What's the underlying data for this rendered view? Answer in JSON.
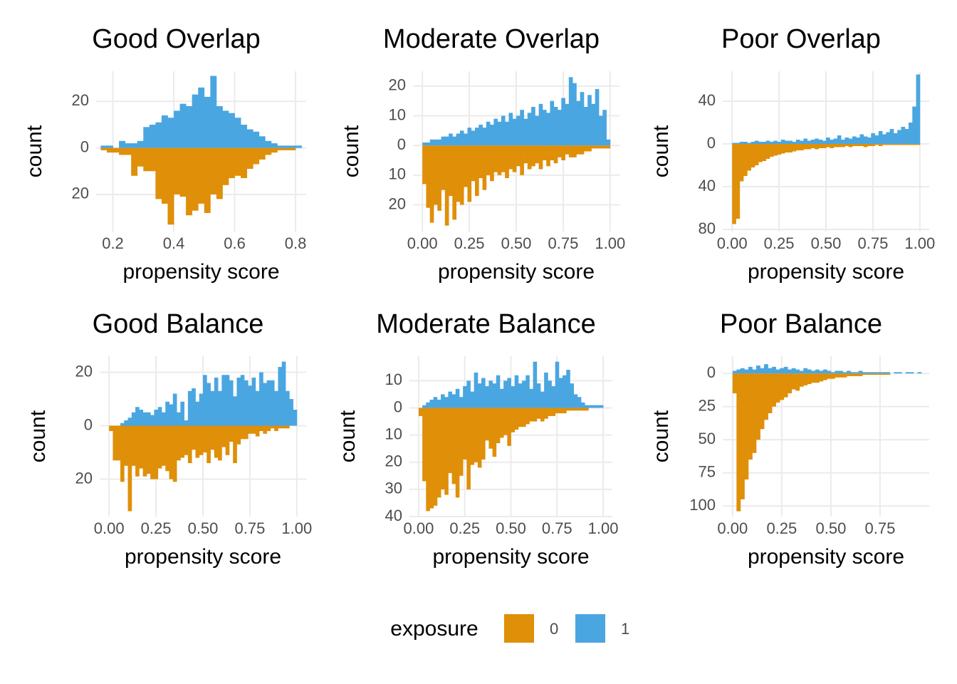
{
  "chart_data": [
    {
      "type": "histogram",
      "title": "Good Overlap",
      "xlabel": "propensity score",
      "ylabel": "count",
      "bins": [
        0.16,
        0.18,
        0.2,
        0.22,
        0.24,
        0.26,
        0.28,
        0.3,
        0.32,
        0.34,
        0.36,
        0.38,
        0.4,
        0.42,
        0.44,
        0.46,
        0.48,
        0.5,
        0.52,
        0.54,
        0.56,
        0.58,
        0.6,
        0.62,
        0.64,
        0.66,
        0.68,
        0.7,
        0.72,
        0.74,
        0.76,
        0.78,
        0.8,
        0.82
      ],
      "series": [
        {
          "name": "0",
          "color": "#df8f08",
          "values": [
            -1,
            -2,
            -2,
            -3,
            -3,
            -12,
            -8,
            -10,
            -10,
            -22,
            -24,
            -33,
            -20,
            -21,
            -29,
            -27,
            -24,
            -28,
            -20,
            -22,
            -16,
            -13,
            -12,
            -13,
            -9,
            -7,
            -5,
            -3,
            -2,
            -1,
            -1,
            -1,
            0
          ]
        },
        {
          "name": "1",
          "color": "#4aa6e1",
          "values": [
            1,
            1,
            0,
            3,
            2,
            2,
            3,
            9,
            10,
            11,
            14,
            13,
            16,
            19,
            18,
            23,
            26,
            22,
            31,
            18,
            16,
            15,
            13,
            10,
            8,
            7,
            5,
            3,
            2,
            1,
            1,
            1,
            1
          ]
        }
      ],
      "xlim": [
        0.145,
        0.835
      ],
      "xticks": [
        0.2,
        0.4,
        0.6,
        0.8
      ],
      "ylim": [
        -36,
        33
      ],
      "yticks": [
        {
          "value": -20,
          "label": "20"
        },
        0,
        20
      ],
      "grid": true
    },
    {
      "type": "histogram",
      "title": "Moderate Overlap",
      "xlabel": "propensity score",
      "ylabel": "count",
      "bins": [
        0,
        0.02,
        0.04,
        0.06,
        0.08,
        0.1,
        0.12,
        0.14,
        0.16,
        0.18,
        0.2,
        0.22,
        0.24,
        0.26,
        0.28,
        0.3,
        0.32,
        0.34,
        0.36,
        0.38,
        0.4,
        0.42,
        0.44,
        0.46,
        0.48,
        0.5,
        0.52,
        0.54,
        0.56,
        0.58,
        0.6,
        0.62,
        0.64,
        0.66,
        0.68,
        0.7,
        0.72,
        0.74,
        0.76,
        0.78,
        0.8,
        0.82,
        0.84,
        0.86,
        0.88,
        0.9,
        0.92,
        0.94,
        0.96,
        0.98,
        1
      ],
      "series": [
        {
          "name": "0",
          "color": "#df8f08",
          "values": [
            -13,
            -21,
            -26,
            -20,
            -22,
            -15,
            -27,
            -17,
            -25,
            -19,
            -20,
            -14,
            -19,
            -12,
            -17,
            -11,
            -15,
            -10,
            -12,
            -9,
            -10,
            -9,
            -11,
            -8,
            -9,
            -7,
            -10,
            -6,
            -8,
            -7,
            -6,
            -8,
            -5,
            -7,
            -5,
            -6,
            -4,
            -5,
            -3,
            -4,
            -4,
            -3,
            -3,
            -2,
            -2,
            -1,
            -1,
            -1,
            -1,
            -1
          ]
        },
        {
          "name": "1",
          "color": "#4aa6e1",
          "values": [
            1,
            1,
            2,
            2,
            2,
            3,
            3,
            4,
            3,
            4,
            5,
            4,
            6,
            5,
            6,
            7,
            6,
            8,
            7,
            9,
            8,
            10,
            8,
            11,
            9,
            10,
            12,
            9,
            11,
            13,
            10,
            14,
            12,
            11,
            15,
            13,
            12,
            16,
            14,
            23,
            21,
            15,
            18,
            13,
            17,
            14,
            19,
            10,
            12,
            2
          ]
        }
      ],
      "xlim": [
        -0.05,
        1.05
      ],
      "xticks": [
        {
          "value": 0,
          "label": "0.00"
        },
        0.25,
        {
          "value": 0.5,
          "label": "0.50"
        },
        0.75,
        {
          "value": 1,
          "label": "1.00"
        }
      ],
      "ylim": [
        -29,
        25
      ],
      "yticks": [
        {
          "value": -20,
          "label": "20"
        },
        {
          "value": -10,
          "label": "10"
        },
        0,
        10,
        20
      ],
      "grid": true
    },
    {
      "type": "histogram",
      "title": "Poor Overlap",
      "xlabel": "propensity score",
      "ylabel": "count",
      "bins": [
        0,
        0.02,
        0.04,
        0.06,
        0.08,
        0.1,
        0.12,
        0.14,
        0.16,
        0.18,
        0.2,
        0.22,
        0.24,
        0.26,
        0.28,
        0.3,
        0.32,
        0.34,
        0.36,
        0.38,
        0.4,
        0.42,
        0.44,
        0.46,
        0.48,
        0.5,
        0.52,
        0.54,
        0.56,
        0.58,
        0.6,
        0.62,
        0.64,
        0.66,
        0.68,
        0.7,
        0.72,
        0.74,
        0.76,
        0.78,
        0.8,
        0.82,
        0.84,
        0.86,
        0.88,
        0.9,
        0.92,
        0.94,
        0.96,
        0.98,
        1
      ],
      "series": [
        {
          "name": "0",
          "color": "#df8f08",
          "values": [
            -75,
            -70,
            -35,
            -30,
            -25,
            -22,
            -20,
            -17,
            -16,
            -14,
            -12,
            -11,
            -10,
            -9,
            -8,
            -8,
            -7,
            -6,
            -6,
            -5,
            -5,
            -4,
            -5,
            -4,
            -4,
            -3,
            -4,
            -3,
            -3,
            -3,
            -2,
            -3,
            -2,
            -2,
            -2,
            -3,
            -2,
            -2,
            -1,
            -2,
            -1,
            -1,
            -1,
            -1,
            -1,
            -1,
            -1,
            -1,
            -1,
            -1
          ]
        },
        {
          "name": "1",
          "color": "#4aa6e1",
          "values": [
            1,
            1,
            2,
            2,
            1,
            2,
            3,
            2,
            2,
            3,
            2,
            3,
            2,
            4,
            3,
            3,
            2,
            4,
            3,
            5,
            3,
            4,
            5,
            4,
            3,
            6,
            4,
            5,
            8,
            4,
            6,
            5,
            7,
            6,
            9,
            7,
            6,
            10,
            8,
            12,
            9,
            11,
            14,
            10,
            13,
            16,
            14,
            20,
            35,
            65
          ]
        }
      ],
      "xlim": [
        -0.05,
        1.05
      ],
      "xticks": [
        {
          "value": 0,
          "label": "0.00"
        },
        0.25,
        {
          "value": 0.5,
          "label": "0.50"
        },
        0.75,
        {
          "value": 1,
          "label": "1.00"
        }
      ],
      "ylim": [
        -82,
        68
      ],
      "yticks": [
        {
          "value": -80,
          "label": "80"
        },
        {
          "value": -40,
          "label": "40"
        },
        0,
        40
      ],
      "grid": true
    },
    {
      "type": "histogram",
      "title": "Good Balance",
      "xlabel": "propensity score",
      "ylabel": "count",
      "bins": [
        0,
        0.02,
        0.04,
        0.06,
        0.08,
        0.1,
        0.12,
        0.14,
        0.16,
        0.18,
        0.2,
        0.22,
        0.24,
        0.26,
        0.28,
        0.3,
        0.32,
        0.34,
        0.36,
        0.38,
        0.4,
        0.42,
        0.44,
        0.46,
        0.48,
        0.5,
        0.52,
        0.54,
        0.56,
        0.58,
        0.6,
        0.62,
        0.64,
        0.66,
        0.68,
        0.7,
        0.72,
        0.74,
        0.76,
        0.78,
        0.8,
        0.82,
        0.84,
        0.86,
        0.88,
        0.9,
        0.92,
        0.94,
        0.96,
        0.98,
        1
      ],
      "series": [
        {
          "name": "0",
          "color": "#df8f08",
          "values": [
            -2,
            -13,
            -13,
            -21,
            -15,
            -32,
            -15,
            -19,
            -16,
            -19,
            -18,
            -20,
            -20,
            -16,
            -15,
            -17,
            -20,
            -21,
            -13,
            -12,
            -11,
            -14,
            -9,
            -12,
            -11,
            -10,
            -14,
            -9,
            -12,
            -13,
            -8,
            -11,
            -6,
            -14,
            -7,
            -5,
            -5,
            -3,
            -3,
            -4,
            -2,
            -3,
            -2,
            -1,
            -2,
            -1,
            -1,
            -1,
            0,
            0
          ]
        },
        {
          "name": "1",
          "color": "#4aa6e1",
          "values": [
            0,
            0,
            0,
            1,
            2,
            3,
            5,
            7,
            6,
            5,
            5,
            4,
            6,
            7,
            5,
            9,
            8,
            12,
            5,
            9,
            2,
            13,
            14,
            9,
            12,
            19,
            16,
            13,
            18,
            13,
            19,
            19,
            17,
            11,
            18,
            19,
            17,
            15,
            18,
            13,
            20,
            16,
            17,
            17,
            13,
            22,
            24,
            13,
            10,
            6
          ]
        }
      ],
      "xlim": [
        -0.05,
        1.05
      ],
      "xticks": [
        {
          "value": 0,
          "label": "0.00"
        },
        0.25,
        {
          "value": 0.5,
          "label": "0.50"
        },
        0.75,
        {
          "value": 1,
          "label": "1.00"
        }
      ],
      "ylim": [
        -34,
        26
      ],
      "yticks": [
        {
          "value": -20,
          "label": "20"
        },
        0,
        20
      ],
      "grid": true
    },
    {
      "type": "histogram",
      "title": "Moderate Balance",
      "xlabel": "propensity score",
      "ylabel": "count",
      "bins": [
        0,
        0.02,
        0.04,
        0.06,
        0.08,
        0.1,
        0.12,
        0.14,
        0.16,
        0.18,
        0.2,
        0.22,
        0.24,
        0.26,
        0.28,
        0.3,
        0.32,
        0.34,
        0.36,
        0.38,
        0.4,
        0.42,
        0.44,
        0.46,
        0.48,
        0.5,
        0.52,
        0.54,
        0.56,
        0.58,
        0.6,
        0.62,
        0.64,
        0.66,
        0.68,
        0.7,
        0.72,
        0.74,
        0.76,
        0.78,
        0.8,
        0.82,
        0.84,
        0.86,
        0.88,
        0.9,
        0.92,
        0.94,
        0.96,
        0.98,
        1
      ],
      "series": [
        {
          "name": "0",
          "color": "#df8f08",
          "values": [
            -3,
            -27,
            -38,
            -37,
            -36,
            -33,
            -30,
            -32,
            -24,
            -28,
            -33,
            -25,
            -19,
            -30,
            -21,
            -20,
            -22,
            -19,
            -12,
            -15,
            -18,
            -13,
            -11,
            -10,
            -14,
            -9,
            -8,
            -7,
            -7,
            -6,
            -5,
            -5,
            -4,
            -5,
            -4,
            -3,
            -3,
            -2,
            -2,
            -2,
            -1,
            -1,
            -1,
            -1,
            -1,
            -1,
            0,
            0,
            0,
            0
          ]
        },
        {
          "name": "1",
          "color": "#4aa6e1",
          "values": [
            0,
            1,
            2,
            3,
            4,
            3,
            5,
            4,
            6,
            5,
            7,
            4,
            8,
            10,
            6,
            13,
            9,
            11,
            8,
            10,
            9,
            12,
            7,
            10,
            11,
            8,
            12,
            9,
            10,
            12,
            7,
            17,
            9,
            6,
            13,
            10,
            8,
            17,
            11,
            12,
            14,
            9,
            5,
            4,
            2,
            1,
            1,
            1,
            1,
            1
          ]
        }
      ],
      "xlim": [
        -0.05,
        1.05
      ],
      "xticks": [
        {
          "value": 0,
          "label": "0.00"
        },
        0.25,
        {
          "value": 0.5,
          "label": "0.50"
        },
        0.75,
        {
          "value": 1,
          "label": "1.00"
        }
      ],
      "ylim": [
        -40,
        19
      ],
      "yticks": [
        {
          "value": -40,
          "label": "40"
        },
        {
          "value": -30,
          "label": "30"
        },
        {
          "value": -20,
          "label": "20"
        },
        {
          "value": -10,
          "label": "10"
        },
        0,
        10
      ],
      "grid": true
    },
    {
      "type": "histogram",
      "title": "Poor Balance",
      "xlabel": "propensity score",
      "ylabel": "count",
      "bins": [
        0,
        0.02,
        0.04,
        0.06,
        0.08,
        0.1,
        0.12,
        0.14,
        0.16,
        0.18,
        0.2,
        0.22,
        0.24,
        0.26,
        0.28,
        0.3,
        0.32,
        0.34,
        0.36,
        0.38,
        0.4,
        0.42,
        0.44,
        0.46,
        0.48,
        0.5,
        0.52,
        0.54,
        0.56,
        0.58,
        0.6,
        0.62,
        0.64,
        0.66,
        0.68,
        0.7,
        0.72,
        0.74,
        0.76,
        0.78,
        0.8,
        0.82,
        0.84,
        0.86,
        0.88,
        0.9,
        0.92,
        0.94,
        0.96
      ],
      "series": [
        {
          "name": "0",
          "color": "#df8f08",
          "values": [
            -15,
            -104,
            -95,
            -80,
            -65,
            -60,
            -50,
            -42,
            -35,
            -30,
            -25,
            -22,
            -20,
            -18,
            -15,
            -12,
            -13,
            -10,
            -9,
            -8,
            -7,
            -7,
            -6,
            -5,
            -4,
            -4,
            -3,
            -3,
            -3,
            -2,
            -2,
            -2,
            -2,
            -1,
            -1,
            -1,
            -1,
            -1,
            -1,
            -1,
            0,
            0,
            0,
            0,
            0,
            0,
            0,
            0
          ]
        },
        {
          "name": "1",
          "color": "#4aa6e1",
          "values": [
            2,
            3,
            4,
            3,
            5,
            3,
            6,
            4,
            7,
            4,
            5,
            3,
            4,
            5,
            3,
            4,
            3,
            2,
            4,
            3,
            2,
            3,
            2,
            3,
            2,
            1,
            2,
            2,
            1,
            2,
            1,
            1,
            2,
            1,
            1,
            1,
            1,
            1,
            1,
            1,
            0,
            1,
            1,
            0,
            1,
            1,
            0,
            1
          ]
        }
      ],
      "xlim": [
        -0.05,
        1.0
      ],
      "xticks": [
        {
          "value": 0,
          "label": "0.00"
        },
        0.25,
        {
          "value": 0.5,
          "label": "0.50"
        },
        0.75
      ],
      "ylim": [
        -108,
        13
      ],
      "yticks": [
        {
          "value": -100,
          "label": "100"
        },
        {
          "value": -75,
          "label": "75"
        },
        {
          "value": -50,
          "label": "50"
        },
        {
          "value": -25,
          "label": "25"
        },
        0
      ],
      "grid": true
    }
  ],
  "legend_title": "exposure"
}
